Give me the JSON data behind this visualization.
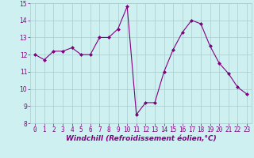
{
  "x": [
    0,
    1,
    2,
    3,
    4,
    5,
    6,
    7,
    8,
    9,
    10,
    11,
    12,
    13,
    14,
    15,
    16,
    17,
    18,
    19,
    20,
    21,
    22,
    23
  ],
  "y": [
    12.0,
    11.7,
    12.2,
    12.2,
    12.4,
    12.0,
    12.0,
    13.0,
    13.0,
    13.5,
    14.8,
    8.5,
    9.2,
    9.2,
    11.0,
    12.3,
    13.3,
    14.0,
    13.8,
    12.5,
    11.5,
    10.9,
    10.1,
    9.7
  ],
  "line_color": "#800080",
  "marker": "D",
  "marker_size": 2,
  "bg_color": "#cff0f0",
  "grid_color": "#aacccc",
  "xlabel": "Windchill (Refroidissement éolien,°C)",
  "xlim": [
    -0.5,
    23.5
  ],
  "ylim": [
    8,
    15
  ],
  "yticks": [
    8,
    9,
    10,
    11,
    12,
    13,
    14,
    15
  ],
  "xticks": [
    0,
    1,
    2,
    3,
    4,
    5,
    6,
    7,
    8,
    9,
    10,
    11,
    12,
    13,
    14,
    15,
    16,
    17,
    18,
    19,
    20,
    21,
    22,
    23
  ],
  "tick_fontsize": 5.5,
  "xlabel_fontsize": 6.5
}
